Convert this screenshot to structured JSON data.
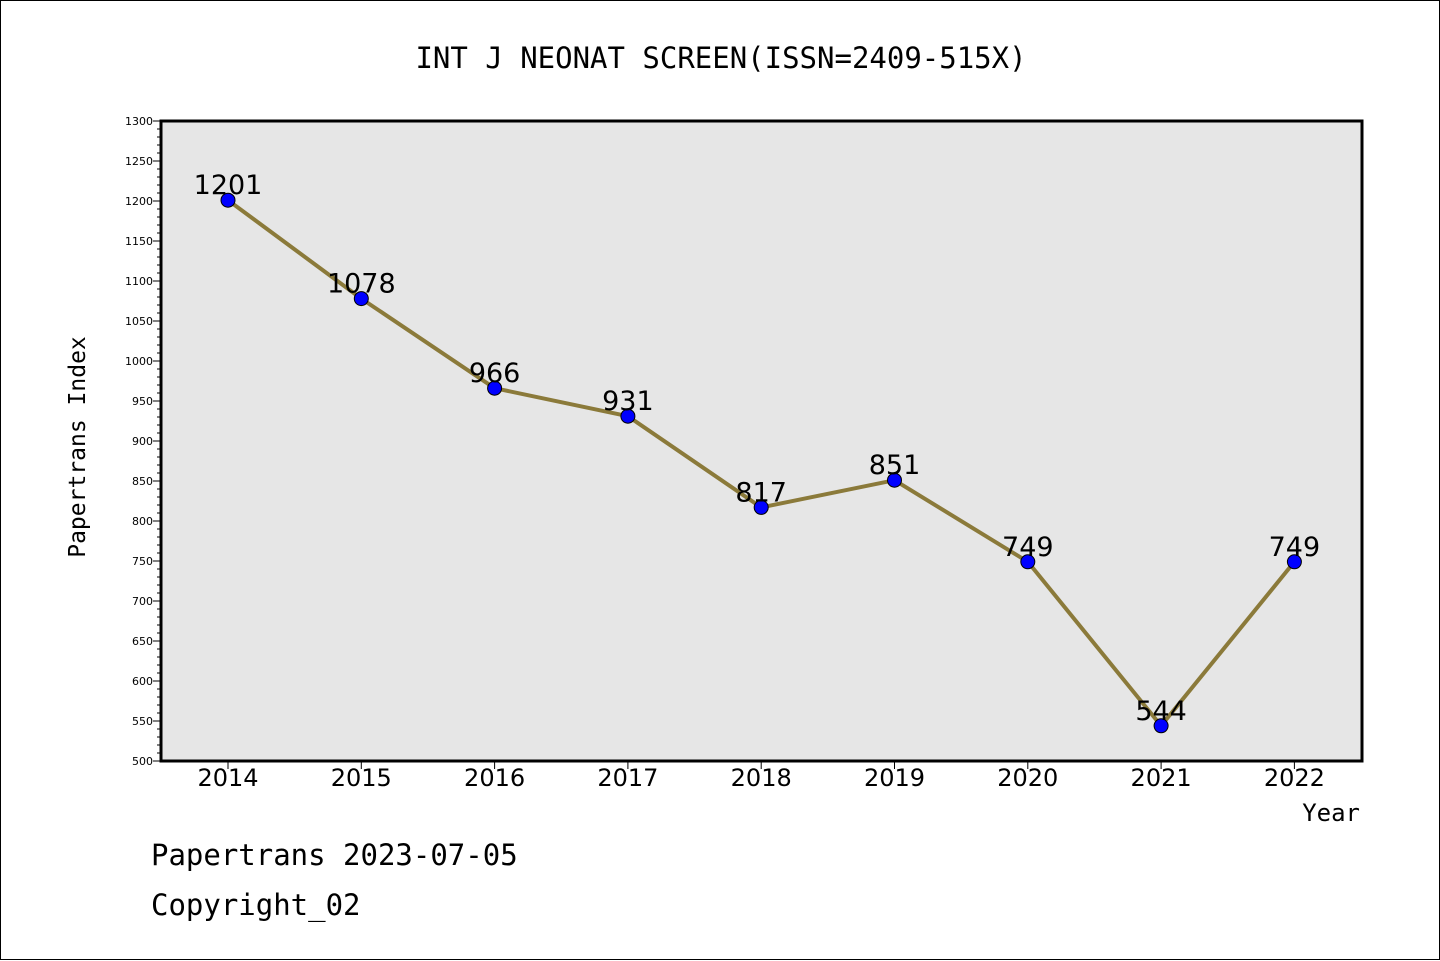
{
  "chart_data": {
    "type": "line",
    "title": "INT J NEONAT SCREEN(ISSN=2409-515X)",
    "xlabel": "Year",
    "ylabel": "Papertrans Index",
    "categories": [
      "2014",
      "2015",
      "2016",
      "2017",
      "2018",
      "2019",
      "2020",
      "2021",
      "2022"
    ],
    "values": [
      1201,
      1078,
      966,
      931,
      817,
      851,
      749,
      544,
      749
    ],
    "ylim": [
      500,
      1300
    ],
    "yticks": [
      "500",
      "550",
      "600",
      "650",
      "700",
      "750",
      "800",
      "850",
      "900",
      "950",
      "1000",
      "1050",
      "1100",
      "1150",
      "1200",
      "1250",
      "1300"
    ],
    "data_labels": [
      "1201",
      "1078",
      "966",
      "931",
      "817",
      "851",
      "749",
      "544",
      "749"
    ],
    "grid": false,
    "colors": {
      "plot_background": "#e6e6e6",
      "line": "#8b7a3a",
      "marker": "#0000ff"
    }
  },
  "footer": {
    "line1": "Papertrans 2023-07-05",
    "line2": "Copyright_02"
  }
}
